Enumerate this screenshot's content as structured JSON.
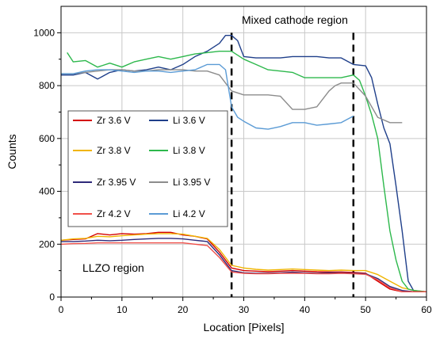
{
  "chart_data": {
    "type": "line",
    "title": "",
    "xlabel": "Location [Pixels]",
    "ylabel": "Counts",
    "xlim": [
      0,
      60
    ],
    "ylim": [
      0,
      1100
    ],
    "xticks": [
      0,
      10,
      20,
      30,
      40,
      50,
      60
    ],
    "yticks": [
      0,
      200,
      400,
      600,
      800,
      1000
    ],
    "grid": true,
    "legend_placement": "left",
    "annotations": [
      {
        "text": "Mixed cathode region",
        "x": 40,
        "y": 1050
      },
      {
        "text": "LLZO region",
        "x": 10,
        "y": 110
      }
    ],
    "vlines": [
      28,
      48
    ],
    "series": [
      {
        "name": "Zr 3.6 V",
        "color": "#d40000",
        "x": [
          0,
          2,
          4,
          6,
          8,
          10,
          12,
          14,
          16,
          18,
          20,
          22,
          24,
          26,
          28,
          30,
          32,
          34,
          36,
          38,
          40,
          42,
          44,
          46,
          48,
          50,
          52,
          54,
          56,
          58,
          60
        ],
        "y": [
          215,
          218,
          220,
          240,
          235,
          240,
          238,
          240,
          245,
          245,
          235,
          230,
          220,
          170,
          110,
          100,
          98,
          96,
          98,
          100,
          98,
          96,
          95,
          95,
          93,
          90,
          60,
          30,
          20,
          20,
          20
        ]
      },
      {
        "name": "Li 3.6 V",
        "color": "#1f3f8a",
        "x": [
          0,
          2,
          4,
          6,
          8,
          10,
          12,
          14,
          16,
          18,
          20,
          22,
          24,
          26,
          27,
          28,
          29,
          30,
          32,
          34,
          36,
          38,
          40,
          42,
          44,
          46,
          48,
          50,
          51,
          52,
          53,
          54,
          55,
          56,
          57,
          58,
          60
        ],
        "y": [
          840,
          840,
          850,
          825,
          850,
          860,
          855,
          860,
          870,
          860,
          880,
          910,
          930,
          960,
          990,
          990,
          970,
          910,
          905,
          905,
          905,
          910,
          910,
          910,
          905,
          905,
          880,
          875,
          830,
          730,
          640,
          580,
          420,
          250,
          60,
          20,
          20
        ]
      },
      {
        "name": "Zr 3.8 V",
        "color": "#f0b400",
        "x": [
          0,
          2,
          4,
          6,
          8,
          10,
          12,
          14,
          16,
          18,
          20,
          22,
          24,
          26,
          28,
          30,
          32,
          34,
          36,
          38,
          40,
          42,
          44,
          46,
          48,
          50,
          52,
          54,
          56,
          58,
          60
        ],
        "y": [
          215,
          220,
          222,
          230,
          228,
          232,
          235,
          238,
          240,
          240,
          238,
          230,
          222,
          180,
          120,
          110,
          105,
          102,
          104,
          106,
          104,
          102,
          100,
          102,
          100,
          100,
          85,
          60,
          35,
          25,
          20
        ]
      },
      {
        "name": "Li 3.8 V",
        "color": "#2db84c",
        "x": [
          1,
          2,
          4,
          6,
          8,
          10,
          12,
          14,
          16,
          18,
          20,
          22,
          24,
          26,
          28,
          30,
          32,
          34,
          36,
          38,
          40,
          42,
          44,
          46,
          48,
          49,
          50,
          51,
          52,
          53,
          54,
          55,
          56,
          57,
          58,
          60
        ],
        "y": [
          925,
          890,
          895,
          870,
          885,
          870,
          890,
          900,
          910,
          900,
          910,
          920,
          925,
          930,
          930,
          900,
          880,
          860,
          855,
          850,
          830,
          830,
          830,
          830,
          840,
          820,
          760,
          690,
          600,
          420,
          250,
          140,
          60,
          30,
          25,
          20
        ]
      },
      {
        "name": "Zr 3.95 V",
        "color": "#2e2a7a",
        "x": [
          0,
          2,
          4,
          6,
          8,
          10,
          12,
          14,
          16,
          18,
          20,
          22,
          24,
          26,
          28,
          30,
          32,
          34,
          36,
          38,
          40,
          42,
          44,
          46,
          48,
          50,
          52,
          54,
          56,
          58,
          60
        ],
        "y": [
          210,
          210,
          212,
          215,
          213,
          215,
          218,
          220,
          222,
          222,
          220,
          215,
          210,
          160,
          100,
          92,
          90,
          90,
          92,
          94,
          92,
          90,
          92,
          92,
          90,
          88,
          70,
          40,
          25,
          20,
          20
        ]
      },
      {
        "name": "Li 3.95 V",
        "color": "#8c8c8c",
        "x": [
          0,
          2,
          4,
          6,
          8,
          10,
          12,
          14,
          16,
          18,
          20,
          22,
          24,
          26,
          28,
          30,
          32,
          34,
          36,
          38,
          40,
          42,
          44,
          45,
          46,
          48,
          50,
          52,
          54,
          56
        ],
        "y": [
          845,
          845,
          850,
          855,
          860,
          860,
          855,
          855,
          860,
          860,
          860,
          855,
          855,
          840,
          780,
          765,
          765,
          765,
          760,
          710,
          710,
          720,
          780,
          800,
          810,
          810,
          760,
          680,
          660,
          660
        ]
      },
      {
        "name": "Zr 4.2 V",
        "color": "#f0504a",
        "x": [
          0,
          2,
          4,
          6,
          8,
          10,
          12,
          14,
          16,
          18,
          20,
          22,
          24,
          26,
          28,
          30,
          32,
          34,
          36,
          38,
          40,
          42,
          44,
          46,
          48,
          50,
          52,
          54,
          56,
          58,
          60
        ],
        "y": [
          200,
          202,
          203,
          205,
          205,
          205,
          205,
          205,
          205,
          205,
          205,
          200,
          195,
          150,
          95,
          90,
          88,
          88,
          90,
          90,
          90,
          88,
          88,
          90,
          88,
          86,
          65,
          35,
          20,
          20,
          20
        ]
      },
      {
        "name": "Li 4.2 V",
        "color": "#5b9bd5",
        "x": [
          0,
          2,
          4,
          6,
          8,
          10,
          12,
          14,
          16,
          18,
          20,
          22,
          24,
          26,
          27,
          28,
          29,
          30,
          32,
          34,
          36,
          38,
          40,
          42,
          44,
          46,
          48
        ],
        "y": [
          845,
          845,
          855,
          860,
          860,
          855,
          850,
          855,
          855,
          850,
          855,
          860,
          880,
          880,
          860,
          720,
          680,
          665,
          640,
          635,
          645,
          660,
          660,
          650,
          655,
          660,
          685
        ]
      }
    ]
  }
}
